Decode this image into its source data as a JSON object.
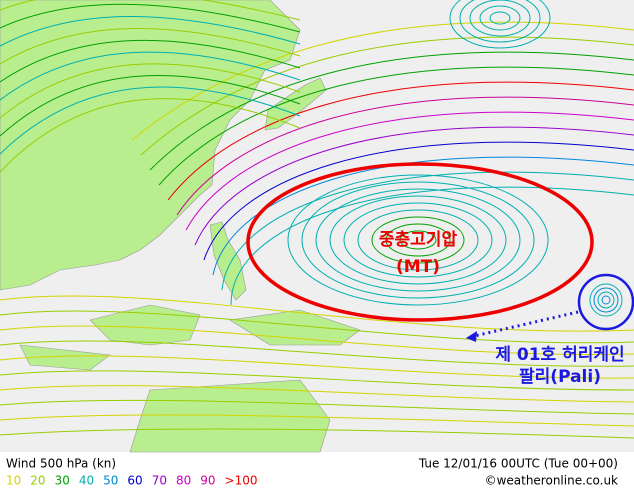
{
  "map": {
    "annotations": {
      "high": "중층고기압",
      "high_code": "(MT)",
      "storm": "제 01호 허리케인",
      "storm_name": "팔리(Pali)"
    },
    "footer": {
      "title": "Wind 500 hPa (kn)",
      "time": "Tue 12/01/16 00UTC (Tue 00+00)",
      "credit": "©weatheronline.co.uk"
    },
    "legend": [
      {
        "label": "10",
        "color": "#d4d400"
      },
      {
        "label": "20",
        "color": "#99cc00"
      },
      {
        "label": "30",
        "color": "#00a000"
      },
      {
        "label": "40",
        "color": "#00b0b0"
      },
      {
        "label": "50",
        "color": "#0088dd"
      },
      {
        "label": "60",
        "color": "#0000cc"
      },
      {
        "label": "70",
        "color": "#9900cc"
      },
      {
        "label": "80",
        "color": "#cc00cc"
      },
      {
        "label": "90",
        "color": "#cc0099"
      },
      {
        "label": ">100",
        "color": "#ee0000"
      }
    ]
  }
}
